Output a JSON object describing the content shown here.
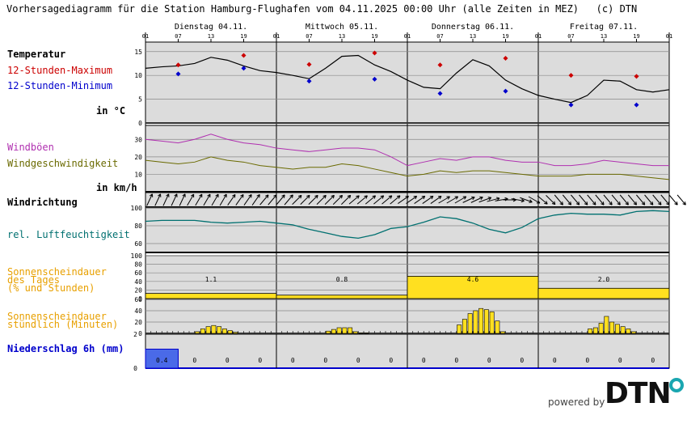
{
  "title": "Vorhersagediagramm für die Station Hamburg-Flughafen vom 04.11.2025 00:00 Uhr (alle Zeiten in MEZ)   (c) DTN",
  "days": [
    "Dienstag 04.11.",
    "Mittwoch 05.11.",
    "Donnerstag 06.11.",
    "Freitag 07.11."
  ],
  "hour_ticks": [
    "01",
    "07",
    "13",
    "19",
    "01",
    "07",
    "13",
    "19",
    "01",
    "07",
    "13",
    "19",
    "01",
    "07",
    "13",
    "19",
    "01"
  ],
  "labels": {
    "temp": "Temperatur",
    "tmax": "12-Stunden-Maximum",
    "tmin": "12-Stunden-Minimum",
    "temp_unit": "in °C",
    "gust": "Windböen",
    "wind": "Windgeschwindigkeit",
    "wind_unit": "in km/h",
    "dir": "Windrichtung",
    "rh": "rel. Luftfeuchtigkeit",
    "sun_day_1": "Sonnenscheindauer",
    "sun_day_2": "des Tages",
    "sun_day_3": "(% und Stunden)",
    "sun_hour_1": "Sonnenscheindauer",
    "sun_hour_2": "stündlich (Minuten)",
    "precip": "Niederschlag 6h (mm)"
  },
  "colors": {
    "tmax": "#cc0000",
    "tmin": "#0000cc",
    "gust": "#b030b0",
    "wind": "#6a6a00",
    "rh": "#007070",
    "sun": "#e8a000",
    "sun_fill": "#ffe020",
    "precip": "#0000cc",
    "precip_fill": "#4a6ae8",
    "panel_bg": "#dcdcdc"
  },
  "branding": {
    "powered": "powered by",
    "brand": "DTN"
  },
  "chart_data": {
    "type": "line",
    "x_unit": "hours since 04.11.2025 01:00",
    "temperature": {
      "ylim": [
        0,
        17
      ],
      "ticks": [
        0,
        5,
        10,
        15
      ],
      "x": [
        0,
        3,
        6,
        9,
        12,
        15,
        18,
        21,
        24,
        27,
        30,
        33,
        36,
        39,
        42,
        45,
        48,
        51,
        54,
        57,
        60,
        63,
        66,
        69,
        72,
        75,
        78,
        81,
        84,
        87,
        90,
        93,
        96
      ],
      "values": [
        11.5,
        11.8,
        12.0,
        12.5,
        13.8,
        13.2,
        12.0,
        11.0,
        10.6,
        10.0,
        9.3,
        11.5,
        14.0,
        14.2,
        12.2,
        10.8,
        9.0,
        7.5,
        7.2,
        10.5,
        13.3,
        12.0,
        9.0,
        7.2,
        5.8,
        5.0,
        4.3,
        5.8,
        9.0,
        8.8,
        7.0,
        6.5,
        7.0
      ],
      "max_points": [
        {
          "x": 6,
          "v": 12.2
        },
        {
          "x": 18,
          "v": 14.2
        },
        {
          "x": 30,
          "v": 12.3
        },
        {
          "x": 42,
          "v": 14.7
        },
        {
          "x": 54,
          "v": 12.2
        },
        {
          "x": 66,
          "v": 13.6
        },
        {
          "x": 78,
          "v": 10.0
        },
        {
          "x": 90,
          "v": 9.8
        }
      ],
      "min_points": [
        {
          "x": 6,
          "v": 10.3
        },
        {
          "x": 18,
          "v": 11.5
        },
        {
          "x": 30,
          "v": 8.8
        },
        {
          "x": 42,
          "v": 9.2
        },
        {
          "x": 54,
          "v": 6.2
        },
        {
          "x": 66,
          "v": 6.7
        },
        {
          "x": 78,
          "v": 3.8
        },
        {
          "x": 90,
          "v": 3.8
        }
      ]
    },
    "wind": {
      "ylim": [
        0,
        38
      ],
      "ticks": [
        10,
        20,
        30
      ],
      "x": [
        0,
        3,
        6,
        9,
        12,
        15,
        18,
        21,
        24,
        27,
        30,
        33,
        36,
        39,
        42,
        45,
        48,
        51,
        54,
        57,
        60,
        63,
        66,
        69,
        72,
        75,
        78,
        81,
        84,
        87,
        90,
        93,
        96
      ],
      "gusts": [
        30,
        29,
        28,
        30,
        33,
        30,
        28,
        27,
        25,
        24,
        23,
        24,
        25,
        25,
        24,
        20,
        15,
        17,
        19,
        18,
        20,
        20,
        18,
        17,
        17,
        15,
        15,
        16,
        18,
        17,
        16,
        15,
        15
      ],
      "speed": [
        18,
        17,
        16,
        17,
        20,
        18,
        17,
        15,
        14,
        13,
        14,
        14,
        16,
        15,
        13,
        11,
        9,
        10,
        12,
        11,
        12,
        12,
        11,
        10,
        9,
        9,
        9,
        10,
        10,
        10,
        9,
        8,
        7
      ]
    },
    "wind_direction": {
      "x_step": 1.5,
      "degrees": [
        205,
        205,
        205,
        205,
        205,
        210,
        210,
        210,
        210,
        210,
        215,
        215,
        215,
        215,
        220,
        220,
        220,
        220,
        225,
        225,
        225,
        225,
        225,
        225,
        225,
        230,
        230,
        230,
        230,
        230,
        230,
        235,
        235,
        235,
        235,
        235,
        240,
        240,
        240,
        245,
        245,
        250,
        255,
        260,
        270,
        280,
        290,
        300,
        310,
        315,
        320,
        320,
        320,
        320,
        320,
        320,
        320,
        320,
        320,
        320,
        320,
        320,
        320,
        320,
        320,
        320
      ]
    },
    "humidity": {
      "ylim": [
        50,
        100
      ],
      "ticks": [
        60,
        80,
        100
      ],
      "x": [
        0,
        3,
        6,
        9,
        12,
        15,
        18,
        21,
        24,
        27,
        30,
        33,
        36,
        39,
        42,
        45,
        48,
        51,
        54,
        57,
        60,
        63,
        66,
        69,
        72,
        75,
        78,
        81,
        84,
        87,
        90,
        93,
        96
      ],
      "values": [
        85,
        86,
        86,
        86,
        84,
        83,
        84,
        85,
        83,
        81,
        76,
        72,
        68,
        66,
        70,
        77,
        79,
        84,
        90,
        88,
        83,
        76,
        72,
        78,
        88,
        92,
        94,
        93,
        93,
        92,
        96,
        97,
        96
      ]
    },
    "daily_sunshine": {
      "ylim": [
        0,
        100
      ],
      "ticks": [
        0,
        20,
        40,
        60,
        80,
        100
      ],
      "percent": [
        12,
        8,
        52,
        24
      ],
      "hours": [
        "1.1",
        "0.8",
        "4.6",
        "2.0"
      ]
    },
    "hourly_sunshine": {
      "ylim": [
        0,
        60
      ],
      "ticks": [
        0,
        20,
        40,
        60
      ],
      "x": [
        9,
        10,
        11,
        12,
        13,
        14,
        15,
        16,
        33,
        34,
        35,
        36,
        37,
        38,
        39,
        40,
        57,
        58,
        59,
        60,
        61,
        62,
        63,
        64,
        65,
        81,
        82,
        83,
        84,
        85,
        86,
        87,
        88,
        89
      ],
      "minutes": [
        3,
        8,
        12,
        14,
        12,
        8,
        5,
        2,
        4,
        7,
        10,
        10,
        10,
        3,
        1,
        1,
        15,
        25,
        35,
        40,
        44,
        42,
        38,
        22,
        3,
        8,
        10,
        18,
        30,
        20,
        16,
        12,
        8,
        3
      ]
    },
    "precipitation": {
      "values": [
        "0.4",
        "0",
        "0",
        "0",
        "0",
        "0",
        "0",
        "0",
        "0",
        "0",
        "0",
        "0",
        "0",
        "0",
        "0",
        "0"
      ],
      "ylim": [
        0,
        2
      ],
      "ticks": [
        0,
        2
      ]
    }
  }
}
